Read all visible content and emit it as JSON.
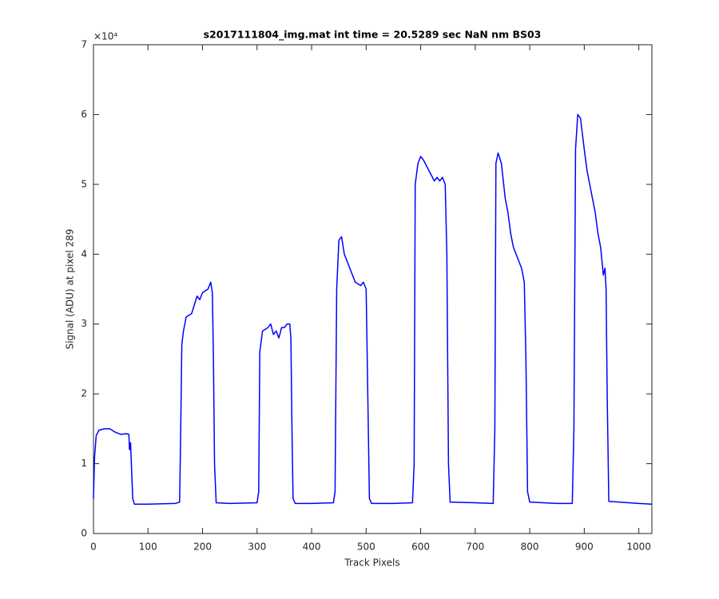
{
  "chart_data": {
    "type": "line",
    "title": "s2017111804_img.mat int time = 20.5289 sec  NaN nm BS03",
    "xlabel": "Track Pixels",
    "ylabel": "Signal (ADU) at pixel 289",
    "y_exponent_label": "×10⁴",
    "color": "#0000ff",
    "xlim": [
      0,
      1024
    ],
    "ylim": [
      0,
      7
    ],
    "xticks": [
      0,
      100,
      200,
      300,
      400,
      500,
      600,
      700,
      800,
      900,
      1000
    ],
    "yticks": [
      0,
      1,
      2,
      3,
      4,
      5,
      6,
      7
    ],
    "x": [
      0,
      2,
      5,
      10,
      20,
      30,
      40,
      50,
      60,
      65,
      66,
      68,
      70,
      72,
      75,
      100,
      150,
      158,
      160,
      162,
      165,
      170,
      180,
      190,
      195,
      200,
      210,
      215,
      218,
      220,
      222,
      225,
      250,
      300,
      303,
      305,
      310,
      320,
      325,
      330,
      335,
      340,
      345,
      350,
      355,
      360,
      362,
      364,
      366,
      370,
      400,
      440,
      443,
      446,
      450,
      455,
      460,
      465,
      470,
      480,
      490,
      495,
      500,
      503,
      506,
      510,
      550,
      585,
      588,
      590,
      595,
      600,
      605,
      615,
      625,
      630,
      635,
      640,
      645,
      648,
      651,
      654,
      700,
      733,
      736,
      738,
      742,
      748,
      755,
      760,
      765,
      770,
      780,
      785,
      790,
      793,
      796,
      800,
      850,
      878,
      881,
      884,
      888,
      893,
      900,
      905,
      910,
      915,
      920,
      925,
      930,
      935,
      938,
      940,
      942,
      945,
      1000,
      1024
    ],
    "values": [
      0.5,
      1.1,
      1.4,
      1.48,
      1.5,
      1.5,
      1.45,
      1.42,
      1.43,
      1.42,
      1.2,
      1.3,
      0.9,
      0.5,
      0.42,
      0.42,
      0.43,
      0.45,
      1.5,
      2.7,
      2.9,
      3.1,
      3.15,
      3.4,
      3.35,
      3.45,
      3.5,
      3.6,
      3.45,
      2.5,
      1.0,
      0.44,
      0.43,
      0.44,
      0.6,
      2.6,
      2.9,
      2.95,
      3.0,
      2.85,
      2.9,
      2.8,
      2.95,
      2.95,
      3.0,
      3.0,
      2.8,
      1.5,
      0.5,
      0.43,
      0.43,
      0.44,
      0.6,
      3.5,
      4.2,
      4.25,
      4.0,
      3.9,
      3.8,
      3.6,
      3.55,
      3.6,
      3.5,
      2.0,
      0.5,
      0.43,
      0.43,
      0.44,
      1.0,
      5.0,
      5.3,
      5.4,
      5.35,
      5.2,
      5.05,
      5.1,
      5.05,
      5.1,
      5.0,
      4.0,
      1.0,
      0.45,
      0.44,
      0.43,
      1.5,
      5.3,
      5.45,
      5.3,
      4.8,
      4.6,
      4.3,
      4.1,
      3.9,
      3.8,
      3.6,
      2.5,
      0.6,
      0.45,
      0.43,
      0.43,
      1.5,
      5.5,
      6.0,
      5.95,
      5.5,
      5.2,
      5.0,
      4.8,
      4.6,
      4.3,
      4.1,
      3.7,
      3.8,
      3.5,
      2.0,
      0.46,
      0.43,
      0.42
    ]
  }
}
